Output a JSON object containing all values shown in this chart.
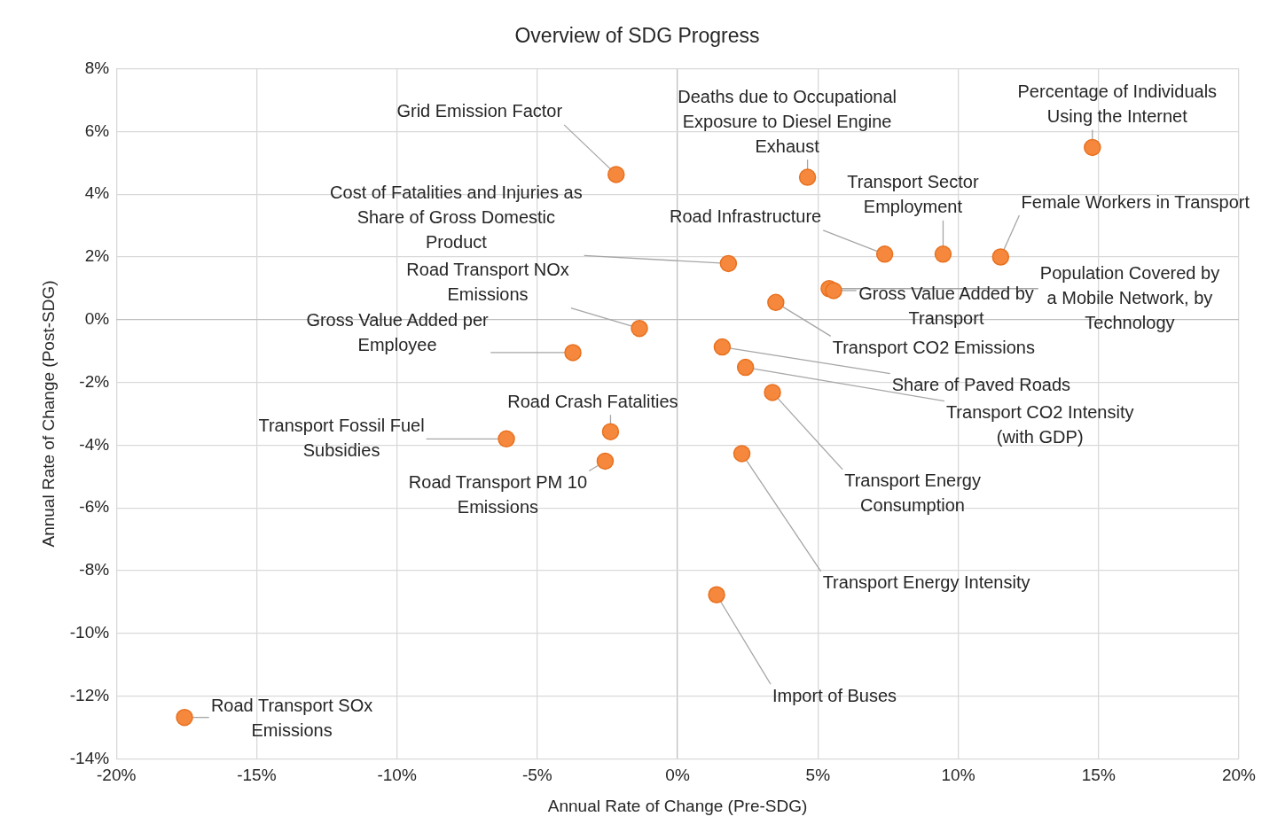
{
  "chart_data": {
    "type": "scatter",
    "title": "Overview of SDG Progress",
    "xlabel": "Annual Rate of Change (Pre-SDG)",
    "ylabel": "Annual Rate of Change (Post-SDG)",
    "series": [
      {
        "color": "#f5883c",
        "x": [
          -2.19,
          4.63,
          14.78,
          7.38,
          9.46,
          11.51,
          1.81,
          5.4,
          5.56,
          3.5,
          -1.36,
          -3.73,
          1.59,
          2.42,
          3.38,
          -2.39,
          -6.1,
          -2.58,
          2.29,
          1.39,
          -17.57
        ],
        "values": [
          4.63,
          4.54,
          5.49,
          2.09,
          2.09,
          2.0,
          1.79,
          0.99,
          0.93,
          0.55,
          -0.28,
          -1.05,
          -0.87,
          -1.52,
          -2.32,
          -3.57,
          -3.8,
          -4.51,
          -4.27,
          -8.77,
          -12.68
        ]
      }
    ],
    "xlim": [
      -20,
      20
    ],
    "xticks": [
      {
        "value": -20,
        "label": "-20%"
      },
      {
        "value": -15,
        "label": "-15%"
      },
      {
        "value": -10,
        "label": "-10%"
      },
      {
        "value": -5,
        "label": "-5%"
      },
      {
        "value": 0,
        "label": "0%"
      },
      {
        "value": 5,
        "label": "5%"
      },
      {
        "value": 10,
        "label": "10%"
      },
      {
        "value": 15,
        "label": "15%"
      },
      {
        "value": 20,
        "label": "20%"
      }
    ],
    "ylim": [
      -14,
      8
    ],
    "yticks": [
      {
        "value": -14,
        "label": "-14%"
      },
      {
        "value": -12,
        "label": "-12%"
      },
      {
        "value": -10,
        "label": "-10%"
      },
      {
        "value": -8,
        "label": "-8%"
      },
      {
        "value": -6,
        "label": "-6%"
      },
      {
        "value": -4,
        "label": "-4%"
      },
      {
        "value": -2,
        "label": "-2%"
      },
      {
        "value": 0,
        "label": "0%"
      },
      {
        "value": 2,
        "label": "2%"
      },
      {
        "value": 4,
        "label": "4%"
      },
      {
        "value": 6,
        "label": "6%"
      },
      {
        "value": 8,
        "label": "8%"
      }
    ],
    "grid": true,
    "legend": false,
    "marker": "circle",
    "annotations": [
      {
        "text": "Grid Emission Factor",
        "x": -2.19,
        "y": 4.63
      },
      {
        "text": "Deaths due to Occupational Exposure to Diesel Engine Exhaust",
        "x": 4.63,
        "y": 4.54
      },
      {
        "text": "Percentage of Individuals Using the Internet",
        "x": 14.78,
        "y": 5.49
      },
      {
        "text": "Road Infrastructure",
        "x": 7.38,
        "y": 2.09
      },
      {
        "text": "Transport Sector Employment",
        "x": 9.46,
        "y": 2.09
      },
      {
        "text": "Female Workers in Transport",
        "x": 11.51,
        "y": 2.0
      },
      {
        "text": "Cost of Fatalities and Injuries as Share of Gross Domestic Product",
        "x": 1.81,
        "y": 1.79
      },
      {
        "text": "Population Covered by a Mobile Network, by Technology",
        "x": 5.4,
        "y": 0.99
      },
      {
        "text": "Gross Value Added by Transport",
        "x": 5.56,
        "y": 0.93
      },
      {
        "text": "Transport CO2 Emissions",
        "x": 3.5,
        "y": 0.55
      },
      {
        "text": "Road Transport NOx Emissions",
        "x": -1.36,
        "y": -0.28
      },
      {
        "text": "Gross Value Added per Employee",
        "x": -3.73,
        "y": -1.05
      },
      {
        "text": "Share of Paved Roads",
        "x": 1.59,
        "y": -0.87
      },
      {
        "text": "Transport CO2 Intensity (with GDP)",
        "x": 2.42,
        "y": -1.52
      },
      {
        "text": "Transport Energy Consumption",
        "x": 3.38,
        "y": -2.32
      },
      {
        "text": "Road Crash Fatalities",
        "x": -2.39,
        "y": -3.57
      },
      {
        "text": "Transport Fossil Fuel Subsidies",
        "x": -6.1,
        "y": -3.8
      },
      {
        "text": "Road Transport PM 10 Emissions",
        "x": -2.58,
        "y": -4.51
      },
      {
        "text": "Transport Energy Intensity",
        "x": 2.29,
        "y": -4.27
      },
      {
        "text": "Import of Buses",
        "x": 1.39,
        "y": -8.77
      },
      {
        "text": "Road Transport SOx Emissions",
        "x": -17.57,
        "y": -12.68
      }
    ]
  }
}
